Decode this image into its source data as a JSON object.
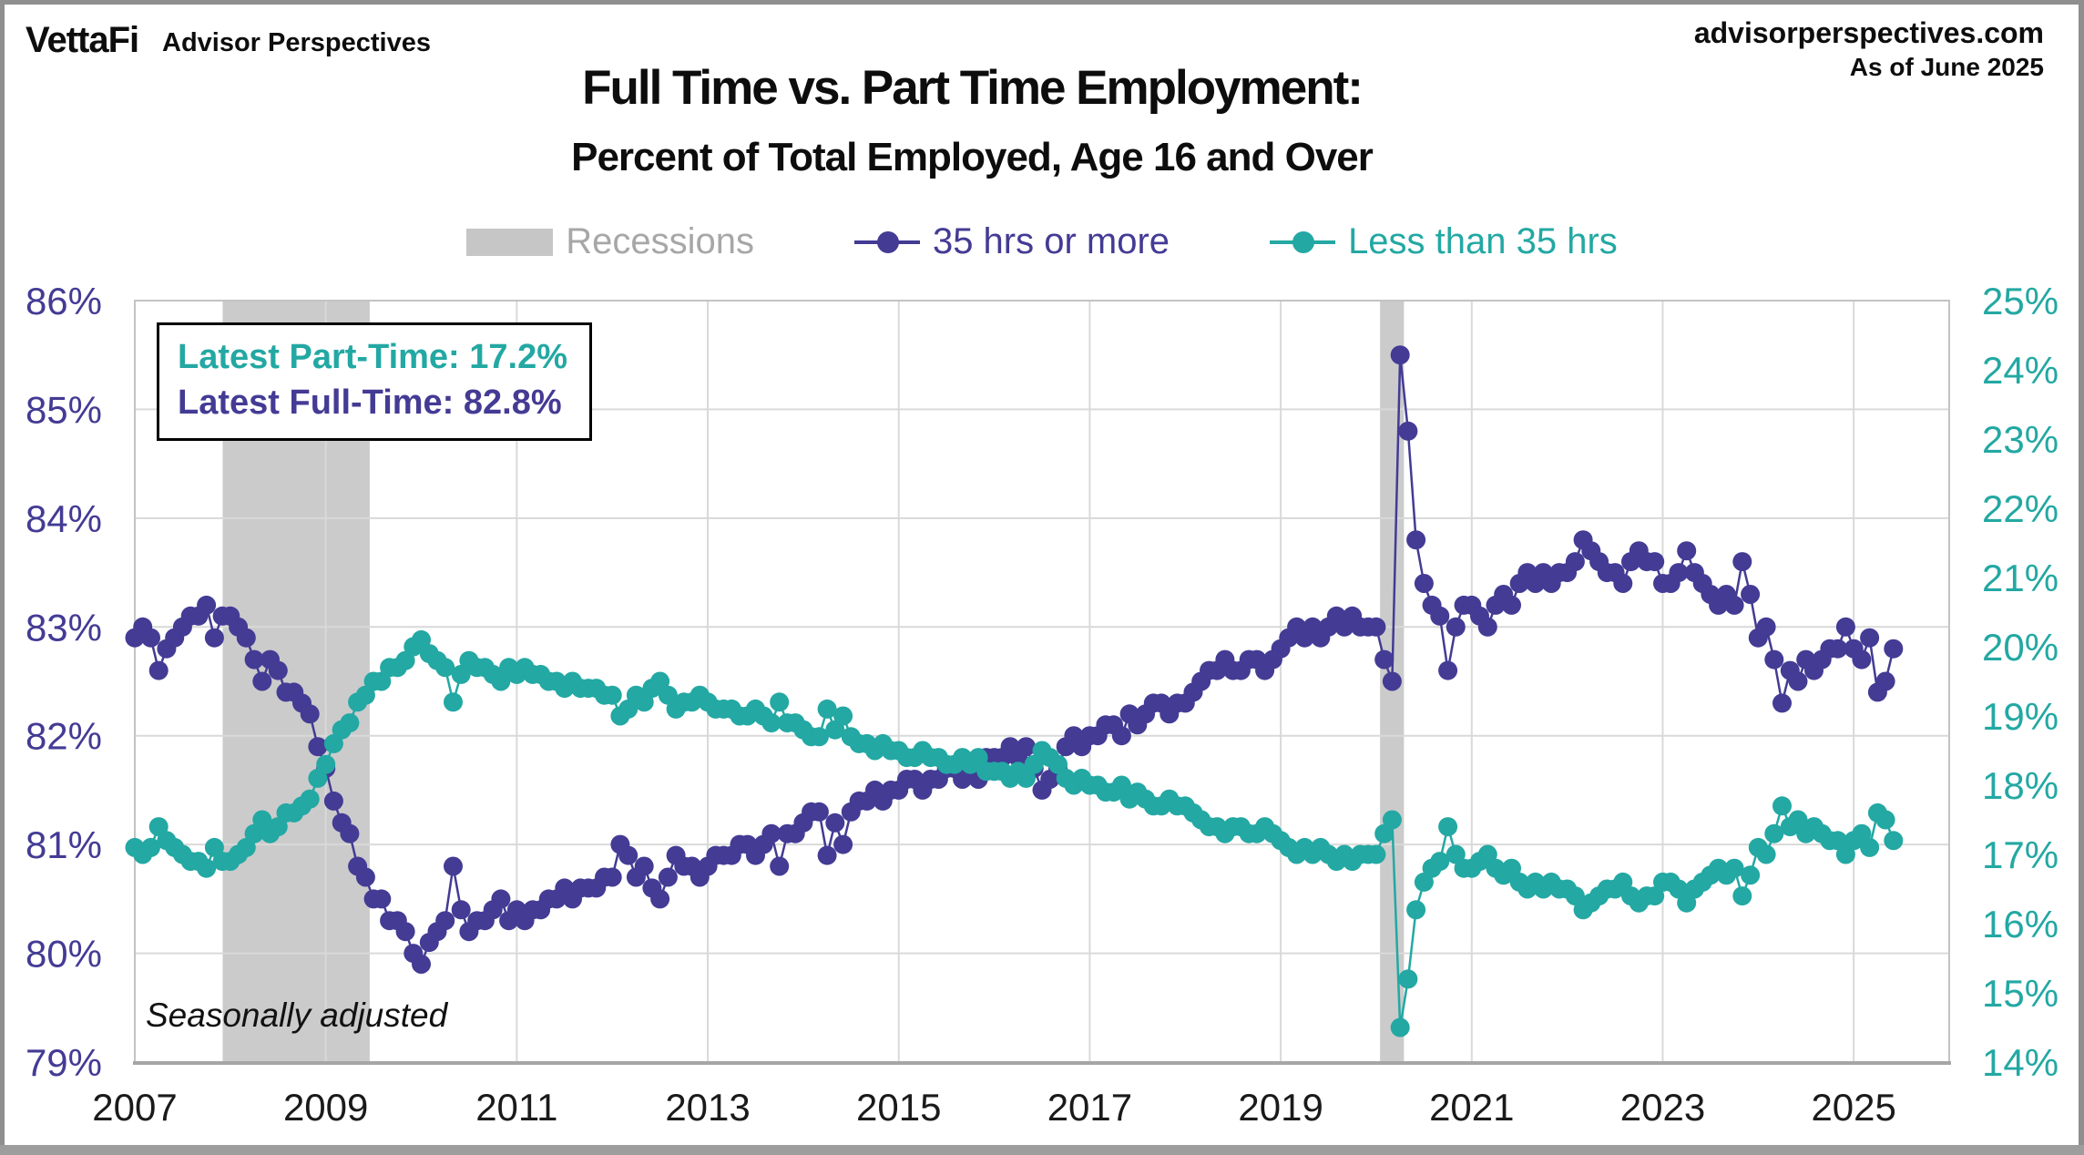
{
  "header": {
    "logo": "VettaFi",
    "brand": "Advisor Perspectives",
    "site": "advisorperspectives.com",
    "as_of": "As of June 2025",
    "title": "Full Time vs. Part Time Employment:",
    "subtitle": "Percent of Total Employed, Age 16 and Over"
  },
  "legend": {
    "recessions": {
      "label": "Recessions",
      "swatch_color": "#c6c6c6",
      "text_color": "#a7a7a7"
    },
    "full_time": {
      "label": "35 hrs or more",
      "color": "#433b94"
    },
    "part_time": {
      "label": "Less than 35 hrs",
      "color": "#23a8a3"
    }
  },
  "annotation": {
    "part_line": "Latest Part-Time: 17.2%",
    "full_line": "Latest Full-Time: 82.8%"
  },
  "note": "Seasonally adjusted",
  "chart_data": {
    "type": "line",
    "title": "Full Time vs. Part Time Employment:",
    "subtitle": "Percent of Total Employed, Age 16 and Over",
    "legend_position": "top",
    "grid": true,
    "x_start": {
      "year": 2007,
      "month": 1
    },
    "x_end": {
      "year": 2025,
      "month": 6
    },
    "x_ticks": [
      2007,
      2009,
      2011,
      2013,
      2015,
      2017,
      2019,
      2021,
      2023,
      2025
    ],
    "x_range": [
      2007,
      2026
    ],
    "left_axis": {
      "min": 79,
      "max": 86,
      "ticks": [
        86,
        85,
        84,
        83,
        82,
        81,
        80,
        79
      ],
      "suffix": "%",
      "color": "#433b94"
    },
    "right_axis": {
      "min": 14,
      "max": 25,
      "ticks": [
        25,
        24,
        23,
        22,
        21,
        20,
        19,
        18,
        17,
        16,
        15,
        14
      ],
      "suffix": "%",
      "color": "#23a8a3"
    },
    "recessions": [
      {
        "start": 2007.92,
        "end": 2009.46
      },
      {
        "start": 2020.04,
        "end": 2020.29
      }
    ],
    "recession_color": "#cbcbcb",
    "gridline_color": "#d9d9d9",
    "plot_border_color": "#c3c3c3",
    "x_axis_line_color": "#a6a6a6",
    "series": [
      {
        "name": "35 hrs or more",
        "axis": "left",
        "color": "#433b94",
        "latest": 82.8,
        "values": [
          82.9,
          83.0,
          82.9,
          82.6,
          82.8,
          82.9,
          83.0,
          83.1,
          83.1,
          83.2,
          82.9,
          83.1,
          83.1,
          83.0,
          82.9,
          82.7,
          82.5,
          82.7,
          82.6,
          82.4,
          82.4,
          82.3,
          82.2,
          81.9,
          81.7,
          81.4,
          81.2,
          81.1,
          80.8,
          80.7,
          80.5,
          80.5,
          80.3,
          80.3,
          80.2,
          80.0,
          79.9,
          80.1,
          80.2,
          80.3,
          80.8,
          80.4,
          80.2,
          80.3,
          80.3,
          80.4,
          80.5,
          80.3,
          80.4,
          80.3,
          80.4,
          80.4,
          80.5,
          80.5,
          80.6,
          80.5,
          80.6,
          80.6,
          80.6,
          80.7,
          80.7,
          81.0,
          80.9,
          80.7,
          80.8,
          80.6,
          80.5,
          80.7,
          80.9,
          80.8,
          80.8,
          80.7,
          80.8,
          80.9,
          80.9,
          80.9,
          81.0,
          81.0,
          80.9,
          81.0,
          81.1,
          80.8,
          81.1,
          81.1,
          81.2,
          81.3,
          81.3,
          80.9,
          81.2,
          81.0,
          81.3,
          81.4,
          81.4,
          81.5,
          81.4,
          81.5,
          81.5,
          81.6,
          81.6,
          81.5,
          81.6,
          81.6,
          81.7,
          81.7,
          81.6,
          81.7,
          81.6,
          81.8,
          81.8,
          81.8,
          81.9,
          81.8,
          81.9,
          81.7,
          81.5,
          81.6,
          81.7,
          81.9,
          82.0,
          81.9,
          82.0,
          82.0,
          82.1,
          82.1,
          82.0,
          82.2,
          82.1,
          82.2,
          82.3,
          82.3,
          82.2,
          82.3,
          82.3,
          82.4,
          82.5,
          82.6,
          82.6,
          82.7,
          82.6,
          82.6,
          82.7,
          82.7,
          82.6,
          82.7,
          82.8,
          82.9,
          83.0,
          82.9,
          83.0,
          82.9,
          83.0,
          83.1,
          83.0,
          83.1,
          83.0,
          83.0,
          83.0,
          82.7,
          82.5,
          85.5,
          84.8,
          83.8,
          83.4,
          83.2,
          83.1,
          82.6,
          83.0,
          83.2,
          83.2,
          83.1,
          83.0,
          83.2,
          83.3,
          83.2,
          83.4,
          83.5,
          83.4,
          83.5,
          83.4,
          83.5,
          83.5,
          83.6,
          83.8,
          83.7,
          83.6,
          83.5,
          83.5,
          83.4,
          83.6,
          83.7,
          83.6,
          83.6,
          83.4,
          83.4,
          83.5,
          83.7,
          83.5,
          83.4,
          83.3,
          83.2,
          83.3,
          83.2,
          83.6,
          83.3,
          82.9,
          83.0,
          82.7,
          82.3,
          82.6,
          82.5,
          82.7,
          82.6,
          82.7,
          82.8,
          82.8,
          83.0,
          82.8,
          82.7,
          82.9,
          82.4,
          82.5,
          82.8
        ]
      },
      {
        "name": "Less than 35 hrs",
        "axis": "right",
        "color": "#23a8a3",
        "latest": 17.2,
        "values": [
          17.1,
          17.0,
          17.1,
          17.4,
          17.2,
          17.1,
          17.0,
          16.9,
          16.9,
          16.8,
          17.1,
          16.9,
          16.9,
          17.0,
          17.1,
          17.3,
          17.5,
          17.3,
          17.4,
          17.6,
          17.6,
          17.7,
          17.8,
          18.1,
          18.3,
          18.6,
          18.8,
          18.9,
          19.2,
          19.3,
          19.5,
          19.5,
          19.7,
          19.7,
          19.8,
          20.0,
          20.1,
          19.9,
          19.8,
          19.7,
          19.2,
          19.6,
          19.8,
          19.7,
          19.7,
          19.6,
          19.5,
          19.7,
          19.6,
          19.7,
          19.6,
          19.6,
          19.5,
          19.5,
          19.4,
          19.5,
          19.4,
          19.4,
          19.4,
          19.3,
          19.3,
          19.0,
          19.1,
          19.3,
          19.2,
          19.4,
          19.5,
          19.3,
          19.1,
          19.2,
          19.2,
          19.3,
          19.2,
          19.1,
          19.1,
          19.1,
          19.0,
          19.0,
          19.1,
          19.0,
          18.9,
          19.2,
          18.9,
          18.9,
          18.8,
          18.7,
          18.7,
          19.1,
          18.8,
          19.0,
          18.7,
          18.6,
          18.6,
          18.5,
          18.6,
          18.5,
          18.5,
          18.4,
          18.4,
          18.5,
          18.4,
          18.4,
          18.3,
          18.3,
          18.4,
          18.3,
          18.4,
          18.2,
          18.2,
          18.2,
          18.1,
          18.2,
          18.1,
          18.3,
          18.5,
          18.4,
          18.3,
          18.1,
          18.0,
          18.1,
          18.0,
          18.0,
          17.9,
          17.9,
          18.0,
          17.8,
          17.9,
          17.8,
          17.7,
          17.7,
          17.8,
          17.7,
          17.7,
          17.6,
          17.5,
          17.4,
          17.4,
          17.3,
          17.4,
          17.4,
          17.3,
          17.3,
          17.4,
          17.3,
          17.2,
          17.1,
          17.0,
          17.1,
          17.0,
          17.1,
          17.0,
          16.9,
          17.0,
          16.9,
          17.0,
          17.0,
          17.0,
          17.3,
          17.5,
          14.5,
          15.2,
          16.2,
          16.6,
          16.8,
          16.9,
          17.4,
          17.0,
          16.8,
          16.8,
          16.9,
          17.0,
          16.8,
          16.7,
          16.8,
          16.6,
          16.5,
          16.6,
          16.5,
          16.6,
          16.5,
          16.5,
          16.4,
          16.2,
          16.3,
          16.4,
          16.5,
          16.5,
          16.6,
          16.4,
          16.3,
          16.4,
          16.4,
          16.6,
          16.6,
          16.5,
          16.3,
          16.5,
          16.6,
          16.7,
          16.8,
          16.7,
          16.8,
          16.4,
          16.7,
          17.1,
          17.0,
          17.3,
          17.7,
          17.4,
          17.5,
          17.3,
          17.4,
          17.3,
          17.2,
          17.2,
          17.0,
          17.2,
          17.3,
          17.1,
          17.6,
          17.5,
          17.2
        ]
      }
    ]
  }
}
